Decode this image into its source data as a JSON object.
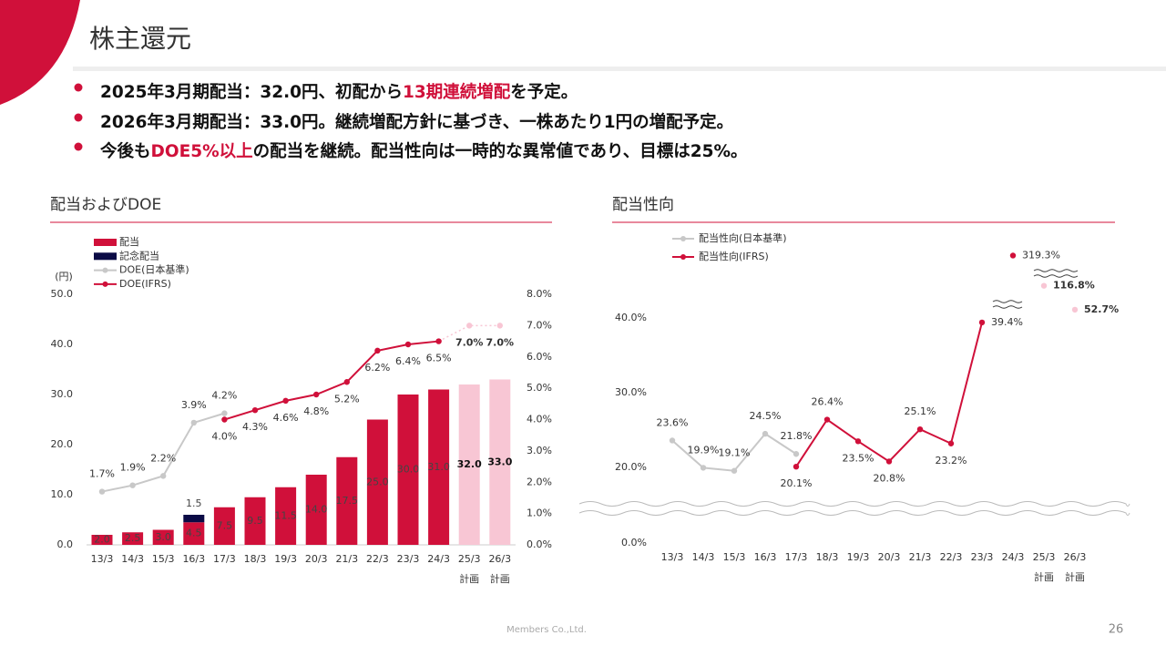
{
  "slide": {
    "title": "株主還元",
    "highlight_color": "#d0103a",
    "bullets": [
      [
        {
          "text": "2025年3月期配当：32.0円、初配から"
        },
        {
          "text": "13期連続増配",
          "highlight": true
        },
        {
          "text": "を予定。"
        }
      ],
      [
        {
          "text": "2026年3月期配当：33.0円。継続増配方針に基づき、一株あたり1円の増配予定。"
        }
      ],
      [
        {
          "text": "今後も"
        },
        {
          "text": "DOE5%以上",
          "highlight": true
        },
        {
          "text": "の配当を継続。配当性向は一時的な異常値であり、目標は25%。"
        }
      ]
    ],
    "footer": "Members Co.,Ltd.",
    "page_number": "26"
  },
  "chart_data": [
    {
      "type": "bar",
      "title": "配当およびDOE",
      "y_unit_label": "(円)",
      "categories": [
        "13/3",
        "14/3",
        "15/3",
        "16/3",
        "17/3",
        "18/3",
        "19/3",
        "20/3",
        "21/3",
        "22/3",
        "23/3",
        "24/3",
        "25/3",
        "26/3"
      ],
      "category_sublabels": [
        null,
        null,
        null,
        null,
        null,
        null,
        null,
        null,
        null,
        null,
        null,
        null,
        "計画",
        "計画"
      ],
      "ylim": [
        0,
        50
      ],
      "yticks": [
        {
          "value": 0,
          "label": "0.0"
        },
        {
          "value": 10,
          "label": "10.0"
        },
        {
          "value": 20,
          "label": "20.0"
        },
        {
          "value": 30,
          "label": "30.0"
        },
        {
          "value": 40,
          "label": "40.0"
        },
        {
          "value": 50,
          "label": "50.0"
        }
      ],
      "y2lim": [
        0,
        8
      ],
      "y2ticks": [
        {
          "value": 0,
          "label": "0.0%"
        },
        {
          "value": 1,
          "label": "1.0%"
        },
        {
          "value": 2,
          "label": "2.0%"
        },
        {
          "value": 3,
          "label": "3.0%"
        },
        {
          "value": 4,
          "label": "4.0%"
        },
        {
          "value": 5,
          "label": "5.0%"
        },
        {
          "value": 6,
          "label": "6.0%"
        },
        {
          "value": 7,
          "label": "7.0%"
        },
        {
          "value": 8,
          "label": "8.0%"
        }
      ],
      "grid": false,
      "series": [
        {
          "name": "配当",
          "type": "bar",
          "color": "#d0103a",
          "point_colors": [
            null,
            null,
            null,
            null,
            null,
            null,
            null,
            null,
            null,
            null,
            null,
            null,
            "#f8c6d4",
            "#f8c6d4"
          ],
          "values": [
            2.0,
            2.5,
            3.0,
            4.5,
            7.5,
            9.5,
            11.5,
            14.0,
            17.5,
            25.0,
            30.0,
            31.0,
            32.0,
            33.0
          ],
          "value_labels": [
            "2.0",
            "2.5",
            "3.0",
            "4.5",
            "7.5",
            "9.5",
            "11.5",
            "14.0",
            "17.5",
            "25.0",
            "30.0",
            "31.0",
            "32.0",
            "33.0"
          ]
        },
        {
          "name": "記念配当",
          "type": "bar",
          "stacked": true,
          "color": "#0b0b45",
          "values": [
            null,
            null,
            null,
            1.5,
            null,
            null,
            null,
            null,
            null,
            null,
            null,
            null,
            null,
            null
          ],
          "value_labels": [
            null,
            null,
            null,
            "1.5",
            null,
            null,
            null,
            null,
            null,
            null,
            null,
            null,
            null,
            null
          ]
        },
        {
          "name": "DOE(日本基準)",
          "type": "line",
          "axis": "y2",
          "color": "#c8c8c8",
          "label_position": "above",
          "values": [
            1.7,
            1.9,
            2.2,
            3.9,
            4.2,
            null,
            null,
            null,
            null,
            null,
            null,
            null,
            null,
            null
          ],
          "value_labels": [
            "1.7%",
            "1.9%",
            "2.2%",
            "3.9%",
            "4.2%",
            null,
            null,
            null,
            null,
            null,
            null,
            null,
            null,
            null
          ]
        },
        {
          "name": "DOE(IFRS)",
          "type": "line",
          "axis": "y2",
          "color": "#d0103a",
          "label_position": "below",
          "point_colors": [
            null,
            null,
            null,
            null,
            null,
            null,
            null,
            null,
            null,
            null,
            null,
            null,
            "#f8c6d4",
            "#f8c6d4"
          ],
          "values": [
            null,
            null,
            null,
            null,
            4.0,
            4.3,
            4.6,
            4.8,
            5.2,
            6.2,
            6.4,
            6.5,
            7.0,
            7.0
          ],
          "value_labels": [
            null,
            null,
            null,
            null,
            "4.0%",
            "4.3%",
            "4.6%",
            "4.8%",
            "5.2%",
            "6.2%",
            "6.4%",
            "6.5%",
            "7.0%",
            "7.0%"
          ]
        }
      ]
    },
    {
      "type": "line",
      "title": "配当性向",
      "categories": [
        "13/3",
        "14/3",
        "15/3",
        "16/3",
        "17/3",
        "18/3",
        "19/3",
        "20/3",
        "21/3",
        "22/3",
        "23/3",
        "24/3",
        "25/3",
        "26/3"
      ],
      "category_sublabels": [
        null,
        null,
        null,
        null,
        null,
        null,
        null,
        null,
        null,
        null,
        null,
        null,
        "計画",
        "計画"
      ],
      "ylim": [
        0,
        40
      ],
      "axis_break": true,
      "yticks": [
        {
          "value": 0,
          "label": "0.0%"
        },
        {
          "value": 20,
          "label": "20.0%"
        },
        {
          "value": 30,
          "label": "30.0%"
        },
        {
          "value": 40,
          "label": "40.0%"
        }
      ],
      "series": [
        {
          "name": "配当性向(日本基準)",
          "color": "#c8c8c8",
          "values": [
            23.6,
            19.9,
            19.1,
            24.5,
            21.8,
            null,
            null,
            null,
            null,
            null,
            null,
            null,
            null,
            null
          ],
          "value_labels": [
            "23.6%",
            "19.9%",
            "19.1%",
            "24.5%",
            "21.8%",
            null,
            null,
            null,
            null,
            null,
            null,
            null,
            null,
            null
          ],
          "label_positions": [
            "above",
            "above",
            "above",
            "above",
            "above",
            null,
            null,
            null,
            null,
            null,
            null,
            null,
            null,
            null
          ]
        },
        {
          "name": "配当性向(IFRS)",
          "color": "#d0103a",
          "values": [
            null,
            null,
            null,
            null,
            20.1,
            26.4,
            23.5,
            20.8,
            25.1,
            23.2,
            39.4,
            null,
            null,
            null
          ],
          "value_labels": [
            null,
            null,
            null,
            null,
            "20.1%",
            "26.4%",
            "23.5%",
            "20.8%",
            "25.1%",
            "23.2%",
            "39.4%",
            null,
            null,
            null
          ],
          "label_positions": [
            null,
            null,
            null,
            null,
            "below",
            "above",
            "below",
            "below",
            "above",
            "below",
            "right",
            "right",
            "right",
            "right"
          ],
          "off_scale_values": [
            null,
            null,
            null,
            null,
            null,
            null,
            null,
            null,
            null,
            null,
            null,
            319.3,
            116.8,
            52.7
          ],
          "off_scale_value_labels": [
            null,
            null,
            null,
            null,
            null,
            null,
            null,
            null,
            null,
            null,
            null,
            "319.3%",
            "116.8%",
            "52.7%"
          ],
          "point_colors": [
            null,
            null,
            null,
            null,
            null,
            null,
            null,
            null,
            null,
            null,
            null,
            null,
            "#f8c6d4",
            "#f8c6d4"
          ]
        }
      ]
    }
  ]
}
